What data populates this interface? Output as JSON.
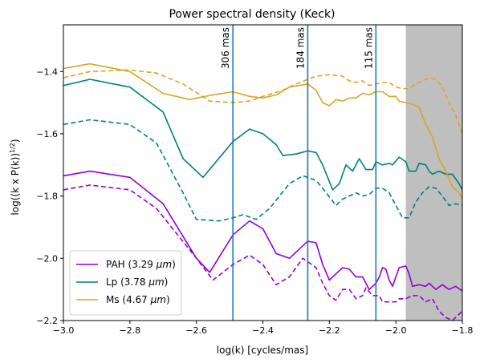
{
  "chart_data": {
    "type": "line",
    "title": "Power spectral density (Keck)",
    "xlabel": "log(k) [cycles/mas]",
    "ylabel_main": "log((k x P(k))",
    "ylabel_exp": "1/2",
    "ylabel_tail": ")",
    "xlim": [
      -3.0,
      -1.8
    ],
    "ylim": [
      -2.2,
      -1.25
    ],
    "xticks": [
      -3.0,
      -2.8,
      -2.6,
      -2.4,
      -2.2,
      -2.0,
      -1.8
    ],
    "xtick_labels": [
      "−3.0",
      "−2.8",
      "−2.6",
      "−2.4",
      "−2.2",
      "−2.0",
      "−1.8"
    ],
    "yticks": [
      -2.2,
      -2.0,
      -1.8,
      -1.6,
      -1.4
    ],
    "ytick_labels": [
      "−2.2",
      "−2.0",
      "−1.8",
      "−1.6",
      "−1.4"
    ],
    "shaded_region": {
      "x_start": -1.97,
      "x_end": -1.8,
      "color": "#bfbfbf"
    },
    "vlines": [
      {
        "x": -2.49,
        "label": "306 mas"
      },
      {
        "x": -2.265,
        "label": "184 mas"
      },
      {
        "x": -2.06,
        "label": "115 mas"
      }
    ],
    "vline_color": "#1f77b4",
    "legend_position": "lower-left",
    "series": [
      {
        "name": "PAH (3.29 μm)",
        "legend_main": "PAH (3.29 ",
        "legend_unit": "μm",
        "legend_close": ")",
        "color": "#9400d3",
        "solid": [
          [
            -3.0,
            -1.735
          ],
          [
            -2.92,
            -1.72
          ],
          [
            -2.8,
            -1.74
          ],
          [
            -2.7,
            -1.825
          ],
          [
            -2.6,
            -2.0
          ],
          [
            -2.56,
            -2.045
          ],
          [
            -2.49,
            -1.925
          ],
          [
            -2.44,
            -1.88
          ],
          [
            -2.4,
            -1.905
          ],
          [
            -2.36,
            -1.985
          ],
          [
            -2.32,
            -2.0
          ],
          [
            -2.265,
            -1.945
          ],
          [
            -2.24,
            -1.95
          ],
          [
            -2.22,
            -2.02
          ],
          [
            -2.2,
            -2.07
          ],
          [
            -2.18,
            -2.05
          ],
          [
            -2.16,
            -2.03
          ],
          [
            -2.14,
            -2.035
          ],
          [
            -2.12,
            -2.06
          ],
          [
            -2.1,
            -2.06
          ],
          [
            -2.08,
            -2.1
          ],
          [
            -2.06,
            -2.08
          ],
          [
            -2.05,
            -2.06
          ],
          [
            -2.04,
            -2.03
          ],
          [
            -2.03,
            -2.035
          ],
          [
            -2.02,
            -2.07
          ],
          [
            -2.01,
            -2.09
          ],
          [
            -2.0,
            -2.06
          ],
          [
            -1.99,
            -2.03
          ],
          [
            -1.97,
            -2.025
          ],
          [
            -1.96,
            -2.05
          ],
          [
            -1.95,
            -2.09
          ],
          [
            -1.93,
            -2.085
          ],
          [
            -1.91,
            -2.09
          ],
          [
            -1.9,
            -2.08
          ],
          [
            -1.88,
            -2.1
          ],
          [
            -1.86,
            -2.085
          ],
          [
            -1.84,
            -2.1
          ],
          [
            -1.82,
            -2.09
          ],
          [
            -1.8,
            -2.105
          ]
        ],
        "dashed": [
          [
            -3.0,
            -1.78
          ],
          [
            -2.92,
            -1.765
          ],
          [
            -2.8,
            -1.78
          ],
          [
            -2.72,
            -1.84
          ],
          [
            -2.6,
            -2.0
          ],
          [
            -2.55,
            -2.07
          ],
          [
            -2.49,
            -2.02
          ],
          [
            -2.44,
            -1.99
          ],
          [
            -2.4,
            -2.02
          ],
          [
            -2.36,
            -2.085
          ],
          [
            -2.32,
            -2.06
          ],
          [
            -2.28,
            -2.0
          ],
          [
            -2.24,
            -2.03
          ],
          [
            -2.22,
            -2.08
          ],
          [
            -2.2,
            -2.12
          ],
          [
            -2.18,
            -2.135
          ],
          [
            -2.16,
            -2.1
          ],
          [
            -2.14,
            -2.1
          ],
          [
            -2.12,
            -2.13
          ],
          [
            -2.1,
            -2.12
          ],
          [
            -2.09,
            -2.095
          ],
          [
            -2.07,
            -2.12
          ],
          [
            -2.05,
            -2.12
          ],
          [
            -2.04,
            -2.14
          ],
          [
            -2.02,
            -2.14
          ],
          [
            -2.0,
            -2.14
          ],
          [
            -1.99,
            -2.13
          ],
          [
            -1.97,
            -2.13
          ],
          [
            -1.95,
            -2.12
          ],
          [
            -1.93,
            -2.12
          ],
          [
            -1.91,
            -2.14
          ],
          [
            -1.89,
            -2.13
          ],
          [
            -1.87,
            -2.17
          ],
          [
            -1.85,
            -2.19
          ],
          [
            -1.83,
            -2.2
          ],
          [
            -1.81,
            -2.18
          ],
          [
            -1.8,
            -2.17
          ]
        ]
      },
      {
        "name": "Lp (3.78 μm)",
        "legend_main": "Lp (3.78 ",
        "legend_unit": "μm",
        "legend_close": ")",
        "color": "#008080",
        "solid": [
          [
            -3.0,
            -1.445
          ],
          [
            -2.92,
            -1.425
          ],
          [
            -2.8,
            -1.45
          ],
          [
            -2.7,
            -1.53
          ],
          [
            -2.64,
            -1.68
          ],
          [
            -2.58,
            -1.74
          ],
          [
            -2.49,
            -1.625
          ],
          [
            -2.44,
            -1.585
          ],
          [
            -2.4,
            -1.6
          ],
          [
            -2.36,
            -1.635
          ],
          [
            -2.34,
            -1.67
          ],
          [
            -2.3,
            -1.665
          ],
          [
            -2.265,
            -1.655
          ],
          [
            -2.24,
            -1.66
          ],
          [
            -2.22,
            -1.7
          ],
          [
            -2.19,
            -1.78
          ],
          [
            -2.17,
            -1.76
          ],
          [
            -2.15,
            -1.7
          ],
          [
            -2.13,
            -1.72
          ],
          [
            -2.11,
            -1.68
          ],
          [
            -2.09,
            -1.715
          ],
          [
            -2.07,
            -1.715
          ],
          [
            -2.06,
            -1.69
          ],
          [
            -2.04,
            -1.7
          ],
          [
            -2.02,
            -1.695
          ],
          [
            -2.01,
            -1.7
          ],
          [
            -1.99,
            -1.675
          ],
          [
            -1.97,
            -1.69
          ],
          [
            -1.96,
            -1.72
          ],
          [
            -1.94,
            -1.72
          ],
          [
            -1.93,
            -1.695
          ],
          [
            -1.91,
            -1.7
          ],
          [
            -1.9,
            -1.72
          ],
          [
            -1.89,
            -1.73
          ],
          [
            -1.87,
            -1.72
          ],
          [
            -1.85,
            -1.73
          ],
          [
            -1.83,
            -1.73
          ],
          [
            -1.81,
            -1.76
          ],
          [
            -1.8,
            -1.78
          ]
        ],
        "dashed": [
          [
            -3.0,
            -1.57
          ],
          [
            -2.92,
            -1.555
          ],
          [
            -2.8,
            -1.57
          ],
          [
            -2.72,
            -1.63
          ],
          [
            -2.64,
            -1.79
          ],
          [
            -2.6,
            -1.875
          ],
          [
            -2.53,
            -1.88
          ],
          [
            -2.49,
            -1.87
          ],
          [
            -2.46,
            -1.86
          ],
          [
            -2.42,
            -1.875
          ],
          [
            -2.38,
            -1.84
          ],
          [
            -2.32,
            -1.76
          ],
          [
            -2.28,
            -1.735
          ],
          [
            -2.265,
            -1.74
          ],
          [
            -2.24,
            -1.75
          ],
          [
            -2.22,
            -1.775
          ],
          [
            -2.18,
            -1.83
          ],
          [
            -2.16,
            -1.81
          ],
          [
            -2.14,
            -1.8
          ],
          [
            -2.12,
            -1.79
          ],
          [
            -2.1,
            -1.8
          ],
          [
            -2.08,
            -1.795
          ],
          [
            -2.06,
            -1.775
          ],
          [
            -2.04,
            -1.775
          ],
          [
            -2.02,
            -1.79
          ],
          [
            -2.0,
            -1.83
          ],
          [
            -1.98,
            -1.87
          ],
          [
            -1.96,
            -1.87
          ],
          [
            -1.94,
            -1.82
          ],
          [
            -1.92,
            -1.79
          ],
          [
            -1.9,
            -1.77
          ],
          [
            -1.88,
            -1.775
          ],
          [
            -1.86,
            -1.8
          ],
          [
            -1.84,
            -1.83
          ],
          [
            -1.82,
            -1.825
          ],
          [
            -1.8,
            -1.83
          ]
        ]
      },
      {
        "name": "Ms (4.67 μm)",
        "legend_main": "Ms (4.67 ",
        "legend_unit": "μm",
        "legend_close": ")",
        "color": "#daa520",
        "solid": [
          [
            -3.0,
            -1.39
          ],
          [
            -2.92,
            -1.375
          ],
          [
            -2.8,
            -1.4
          ],
          [
            -2.7,
            -1.47
          ],
          [
            -2.62,
            -1.49
          ],
          [
            -2.55,
            -1.475
          ],
          [
            -2.49,
            -1.465
          ],
          [
            -2.44,
            -1.48
          ],
          [
            -2.4,
            -1.485
          ],
          [
            -2.36,
            -1.475
          ],
          [
            -2.32,
            -1.45
          ],
          [
            -2.265,
            -1.44
          ],
          [
            -2.24,
            -1.46
          ],
          [
            -2.22,
            -1.5
          ],
          [
            -2.2,
            -1.51
          ],
          [
            -2.18,
            -1.49
          ],
          [
            -2.16,
            -1.495
          ],
          [
            -2.14,
            -1.485
          ],
          [
            -2.12,
            -1.485
          ],
          [
            -2.1,
            -1.47
          ],
          [
            -2.08,
            -1.475
          ],
          [
            -2.06,
            -1.465
          ],
          [
            -2.04,
            -1.465
          ],
          [
            -2.02,
            -1.48
          ],
          [
            -2.0,
            -1.48
          ],
          [
            -1.99,
            -1.495
          ],
          [
            -1.97,
            -1.5
          ],
          [
            -1.95,
            -1.505
          ],
          [
            -1.93,
            -1.515
          ],
          [
            -1.91,
            -1.57
          ],
          [
            -1.89,
            -1.61
          ],
          [
            -1.87,
            -1.68
          ],
          [
            -1.85,
            -1.72
          ],
          [
            -1.83,
            -1.77
          ],
          [
            -1.81,
            -1.79
          ],
          [
            -1.8,
            -1.81
          ]
        ],
        "dashed": [
          [
            -3.0,
            -1.42
          ],
          [
            -2.92,
            -1.4
          ],
          [
            -2.8,
            -1.395
          ],
          [
            -2.72,
            -1.405
          ],
          [
            -2.64,
            -1.44
          ],
          [
            -2.56,
            -1.495
          ],
          [
            -2.49,
            -1.5
          ],
          [
            -2.44,
            -1.495
          ],
          [
            -2.4,
            -1.48
          ],
          [
            -2.34,
            -1.46
          ],
          [
            -2.3,
            -1.44
          ],
          [
            -2.265,
            -1.425
          ],
          [
            -2.24,
            -1.415
          ],
          [
            -2.2,
            -1.41
          ],
          [
            -2.16,
            -1.415
          ],
          [
            -2.14,
            -1.43
          ],
          [
            -2.12,
            -1.435
          ],
          [
            -2.1,
            -1.43
          ],
          [
            -2.08,
            -1.445
          ],
          [
            -2.06,
            -1.44
          ],
          [
            -2.04,
            -1.435
          ],
          [
            -2.02,
            -1.435
          ],
          [
            -2.0,
            -1.45
          ],
          [
            -1.98,
            -1.455
          ],
          [
            -1.96,
            -1.455
          ],
          [
            -1.94,
            -1.44
          ],
          [
            -1.92,
            -1.43
          ],
          [
            -1.9,
            -1.42
          ],
          [
            -1.88,
            -1.425
          ],
          [
            -1.86,
            -1.45
          ],
          [
            -1.84,
            -1.5
          ],
          [
            -1.82,
            -1.54
          ],
          [
            -1.8,
            -1.6
          ]
        ]
      }
    ]
  }
}
